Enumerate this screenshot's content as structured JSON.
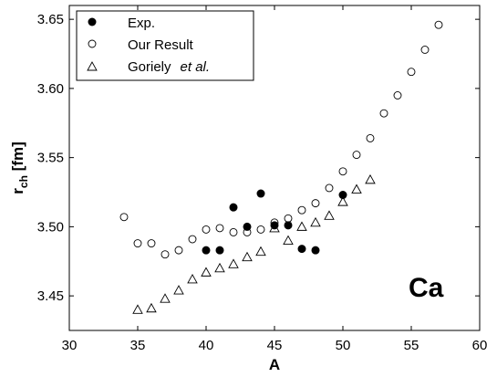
{
  "chart_data": {
    "type": "scatter",
    "title": "",
    "xlabel": "A",
    "ylabel_main": "r",
    "ylabel_sub": "ch",
    "ylabel_unit": " [fm]",
    "xlim": [
      30,
      60
    ],
    "ylim": [
      3.425,
      3.66
    ],
    "xticks": [
      30,
      35,
      40,
      45,
      50,
      55,
      60
    ],
    "yticks": [
      3.45,
      3.5,
      3.55,
      3.6,
      3.65
    ],
    "grid": false,
    "legend_position": "top-left",
    "annotation": "Ca",
    "series": [
      {
        "name": "Exp.",
        "marker": "filled-circle",
        "color": "#000000",
        "x": [
          40,
          41,
          42,
          43,
          44,
          45,
          46,
          47,
          48,
          50
        ],
        "y": [
          3.483,
          3.483,
          3.514,
          3.5,
          3.524,
          3.501,
          3.501,
          3.484,
          3.483,
          3.523
        ]
      },
      {
        "name": "Our Result",
        "marker": "open-circle",
        "color": "#000000",
        "x": [
          34,
          35,
          36,
          37,
          38,
          39,
          40,
          41,
          42,
          43,
          44,
          45,
          46,
          47,
          48,
          49,
          50,
          51,
          52,
          53,
          54,
          55,
          56,
          57
        ],
        "y": [
          3.507,
          3.488,
          3.488,
          3.48,
          3.483,
          3.491,
          3.498,
          3.499,
          3.496,
          3.496,
          3.498,
          3.503,
          3.506,
          3.512,
          3.517,
          3.528,
          3.54,
          3.552,
          3.564,
          3.582,
          3.595,
          3.612,
          3.628,
          3.646
        ]
      },
      {
        "name": "Goriely",
        "name_suffix": "et al.",
        "marker": "open-triangle",
        "color": "#000000",
        "x": [
          35,
          36,
          37,
          38,
          39,
          40,
          41,
          42,
          43,
          44,
          45,
          46,
          47,
          48,
          49,
          50,
          51,
          52
        ],
        "y": [
          3.44,
          3.441,
          3.448,
          3.454,
          3.462,
          3.467,
          3.47,
          3.473,
          3.478,
          3.482,
          3.499,
          3.49,
          3.5,
          3.503,
          3.508,
          3.518,
          3.527,
          3.534
        ]
      }
    ]
  }
}
